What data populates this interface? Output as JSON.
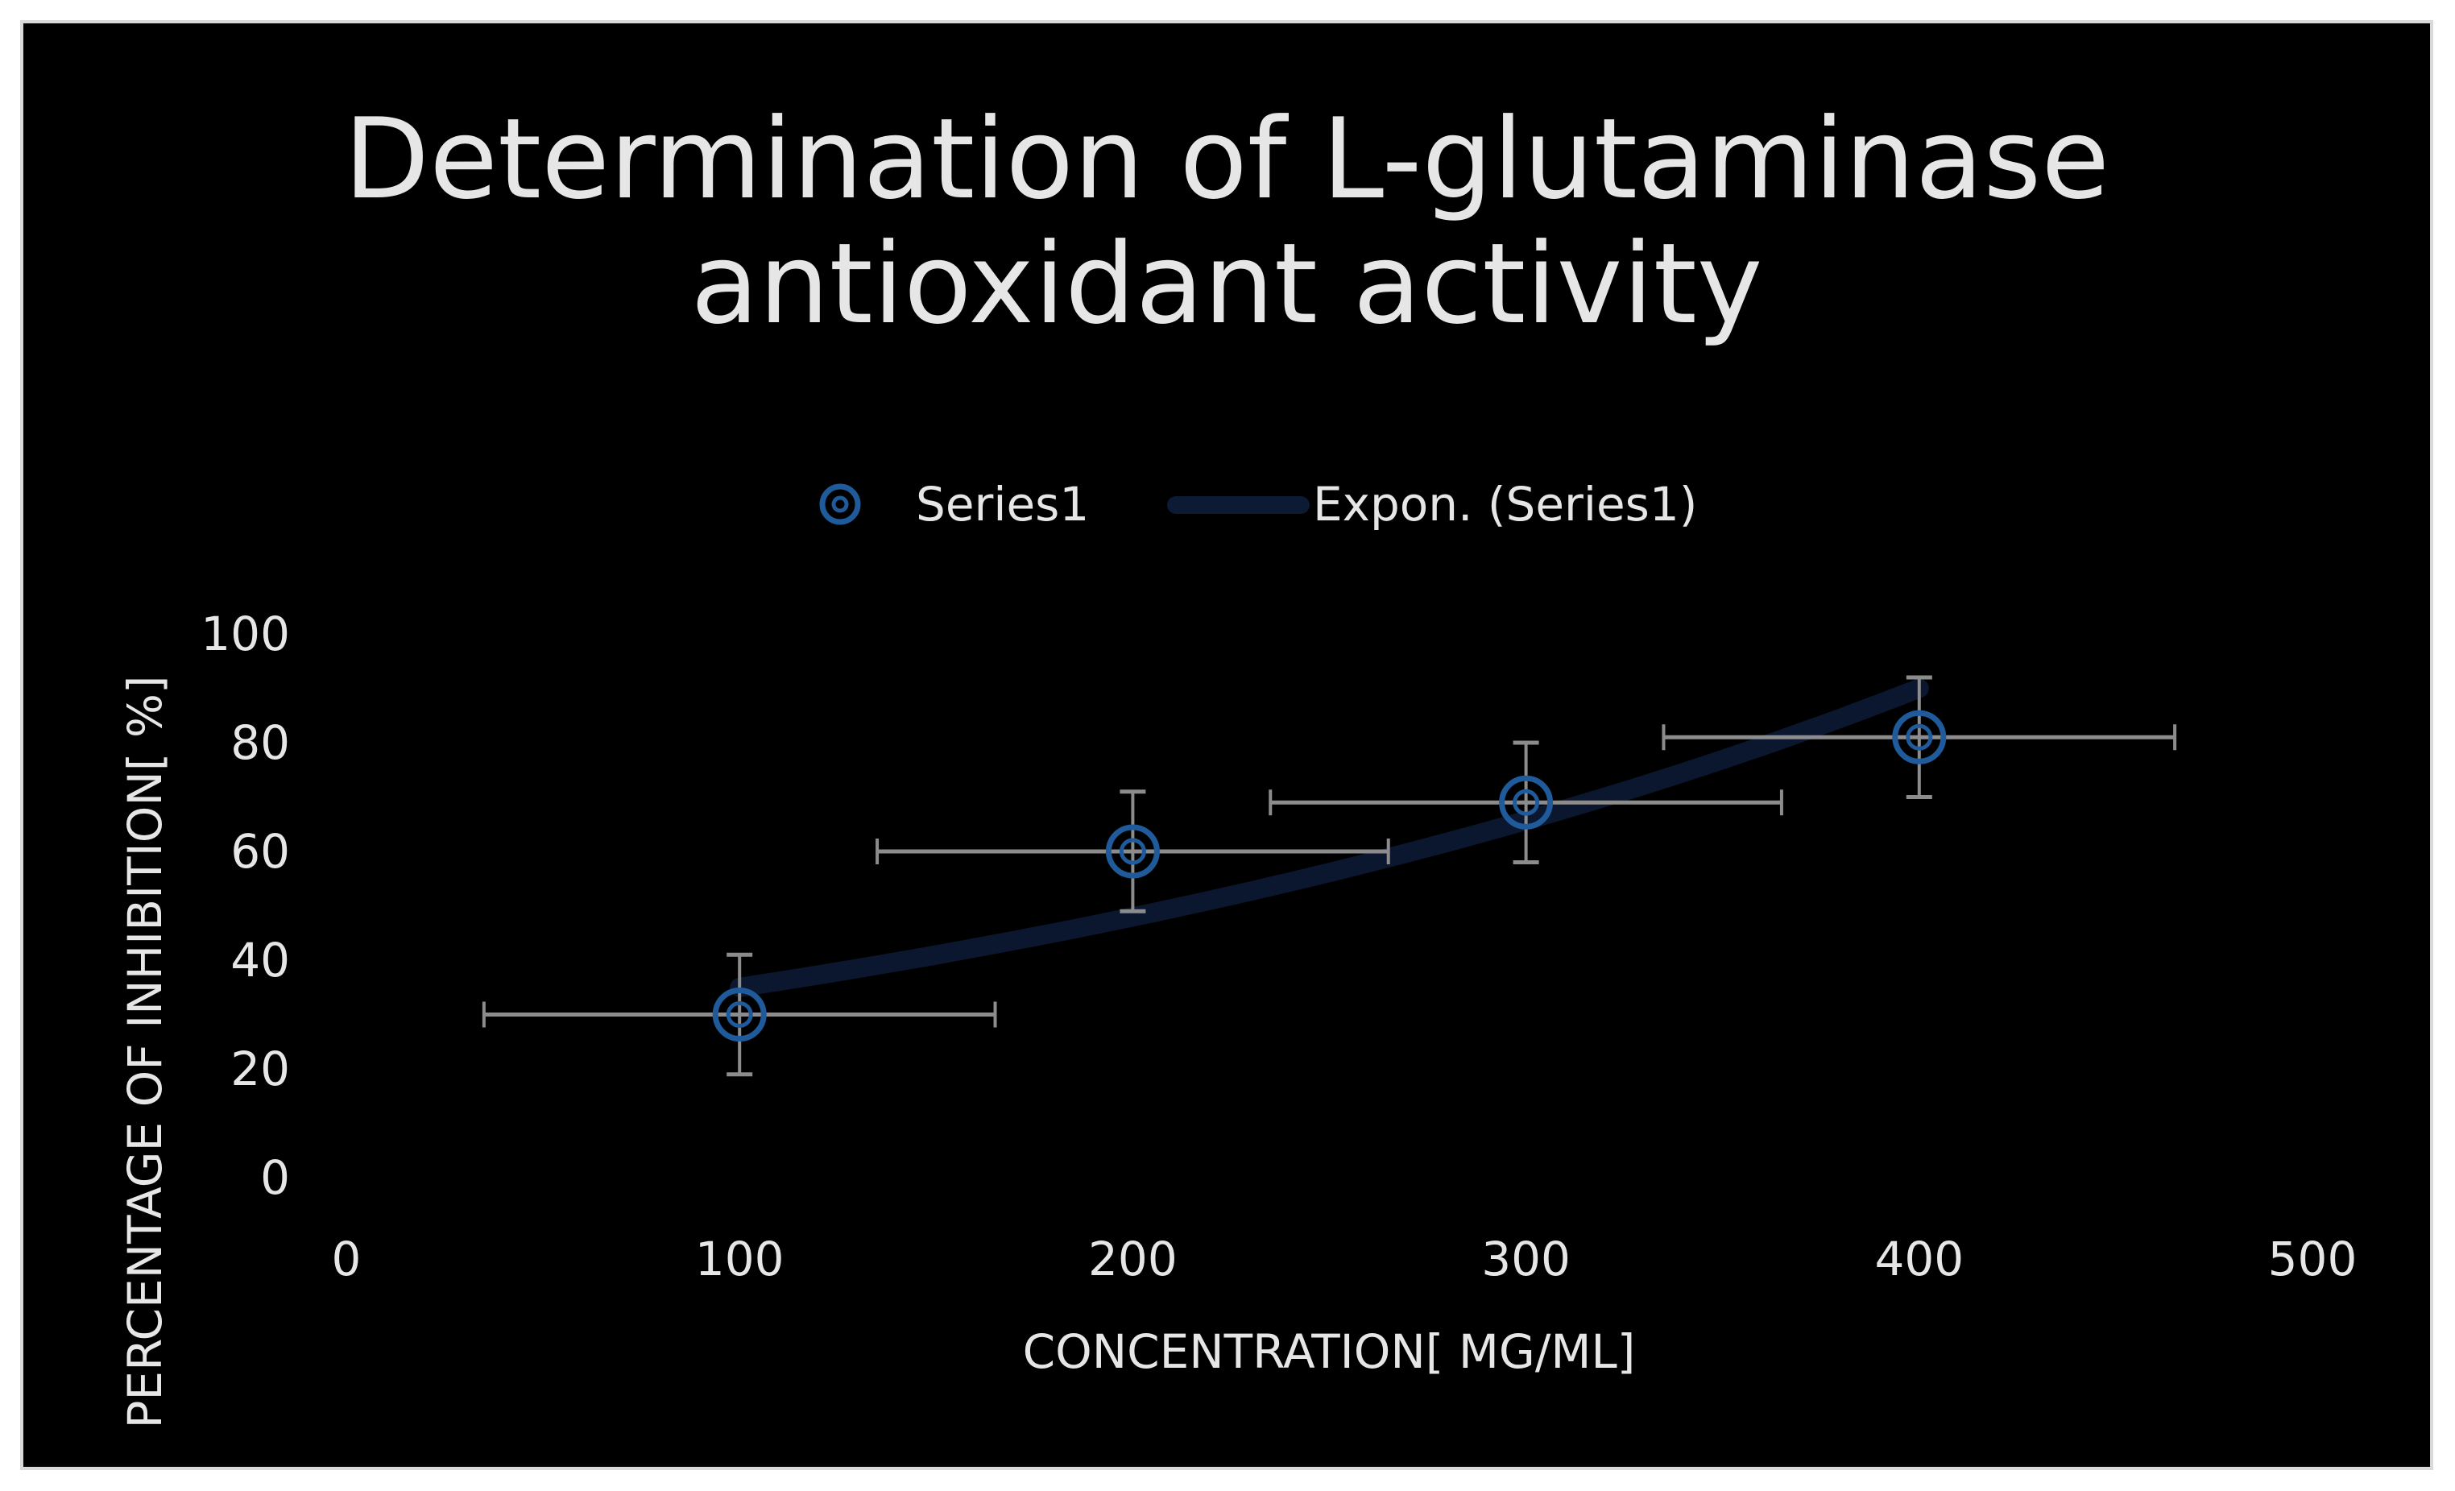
{
  "chart_data": {
    "type": "scatter",
    "title": "Determination of L-glutaminase antioxidant activity",
    "title_lines": [
      "Determination of L-glutaminase",
      "antioxidant activity"
    ],
    "xlabel": "CONCENTRATION[ MG/ML]",
    "ylabel": "PERCENTAGE OF INHIBITION[ %]",
    "xlim": [
      0,
      500
    ],
    "ylim": [
      0,
      100
    ],
    "x_ticks": [
      "0",
      "100",
      "200",
      "300",
      "400",
      "500"
    ],
    "y_ticks": [
      "0",
      "20",
      "40",
      "60",
      "80",
      "100"
    ],
    "grid": false,
    "legend_position": "top",
    "series": [
      {
        "name": "Series1",
        "x": [
          100,
          200,
          300,
          400
        ],
        "y": [
          30,
          60,
          69,
          81
        ],
        "y_error": [
          11,
          11,
          11,
          11
        ],
        "x_error": [
          65,
          65,
          65,
          65
        ],
        "color": "#1f5a9a",
        "marker": "target-circle"
      }
    ],
    "trendline": {
      "name": "Expon. (Series1)",
      "type": "exponential",
      "x_range": [
        100,
        400
      ],
      "y_start": 35,
      "y_end": 90,
      "color": "#0c1a33"
    },
    "colors": {
      "background": "#000000",
      "text": "#e6e6e6",
      "error_bars": "#8c8c8c",
      "border": "#d9d9d9"
    }
  }
}
